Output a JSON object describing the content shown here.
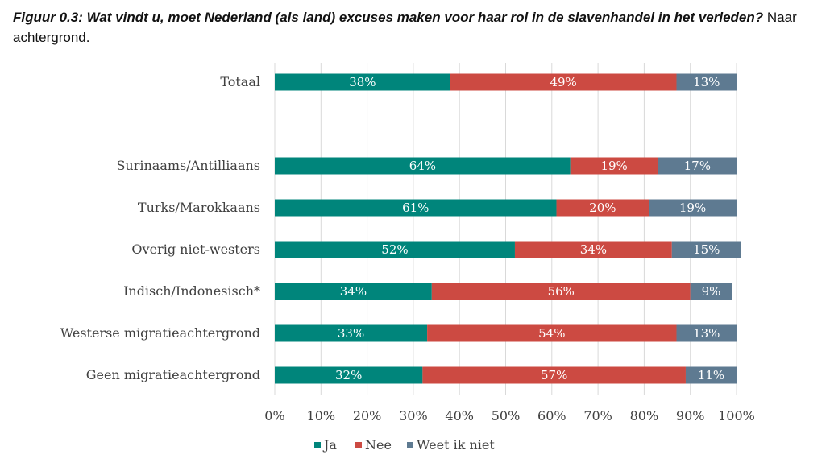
{
  "title": {
    "bold": "Figuur 0.3: Wat vindt u, moet Nederland (als land) excuses maken voor haar rol in de slavenhandel in het verleden?",
    "rest": " Naar achtergrond."
  },
  "colors": {
    "ja": "#00857b",
    "nee": "#cc4a42",
    "weet": "#5e7a91",
    "grid": "#d9d9d9"
  },
  "chart_data": {
    "type": "bar",
    "orientation": "horizontal",
    "stacked": true,
    "xlim": [
      0,
      100
    ],
    "grid": true,
    "legend_position": "bottom",
    "x_ticks": [
      "0%",
      "10%",
      "20%",
      "30%",
      "40%",
      "50%",
      "60%",
      "70%",
      "80%",
      "90%",
      "100%"
    ],
    "categories": [
      "Totaal",
      "Surinaams/Antilliaans",
      "Turks/Marokkaans",
      "Overig niet-westers",
      "Indisch/Indonesisch*",
      "Westerse migratieachtergrond",
      "Geen migratieachtergrond"
    ],
    "series": [
      {
        "name": "Ja",
        "color": "#00857b",
        "values": [
          38,
          64,
          61,
          52,
          34,
          33,
          32
        ],
        "labels": [
          "38%",
          "64%",
          "61%",
          "52%",
          "34%",
          "33%",
          "32%"
        ]
      },
      {
        "name": "Nee",
        "color": "#cc4a42",
        "values": [
          49,
          19,
          20,
          34,
          56,
          54,
          57
        ],
        "labels": [
          "49%",
          "19%",
          "20%",
          "34%",
          "56%",
          "54%",
          "57%"
        ]
      },
      {
        "name": "Weet ik niet",
        "color": "#5e7a91",
        "values": [
          13,
          17,
          19,
          15,
          9,
          13,
          11
        ],
        "labels": [
          "13%",
          "17%",
          "19%",
          "15%",
          "9%",
          "13%",
          "11%"
        ]
      }
    ]
  }
}
